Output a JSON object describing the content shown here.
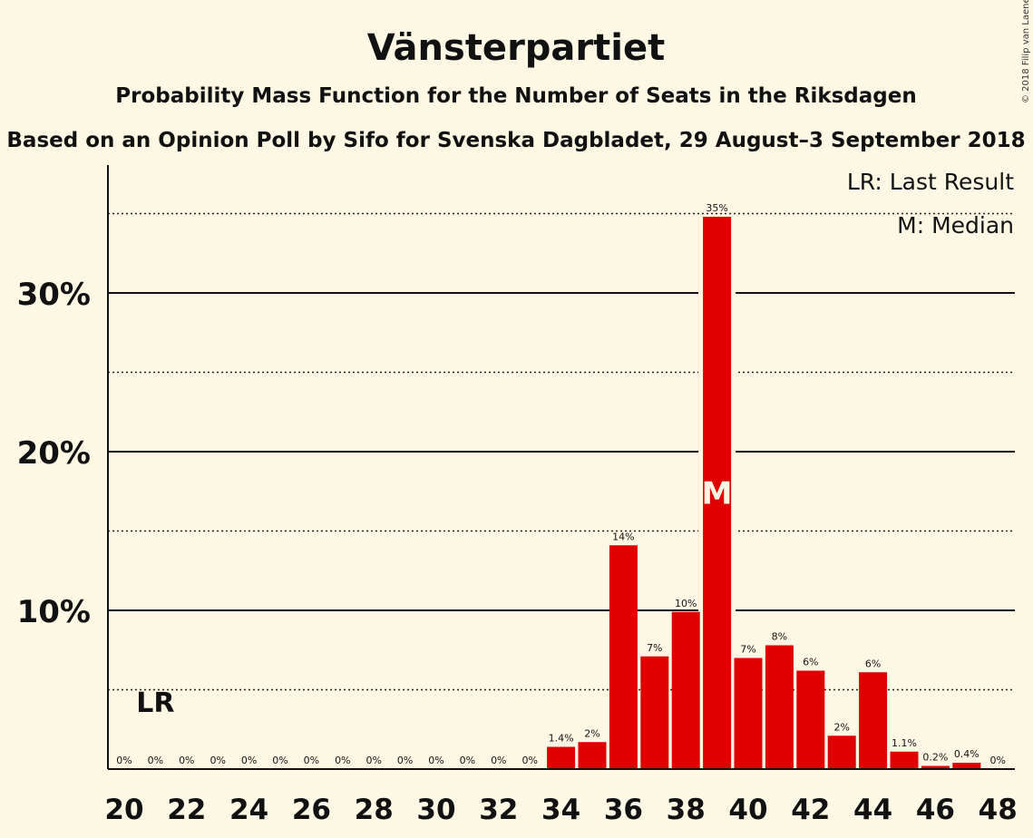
{
  "chart_data": {
    "type": "bar",
    "title": "Vänsterpartiet",
    "subtitle": "Probability Mass Function for the Number of Seats in the Riksdagen",
    "subtitle2": "Based on an Opinion Poll by Sifo for Svenska Dagbladet, 29 August–3 September 2018",
    "copyright": "© 2018 Filip van Laenen",
    "categories": [
      20,
      21,
      22,
      23,
      24,
      25,
      26,
      27,
      28,
      29,
      30,
      31,
      32,
      33,
      34,
      35,
      36,
      37,
      38,
      39,
      40,
      41,
      42,
      43,
      44,
      45,
      46,
      47,
      48
    ],
    "values": [
      0,
      0,
      0,
      0,
      0,
      0,
      0,
      0,
      0,
      0,
      0,
      0,
      0,
      0,
      1.4,
      1.7,
      14.1,
      7.1,
      9.9,
      34.8,
      7.0,
      7.8,
      6.2,
      2.1,
      6.1,
      1.1,
      0.2,
      0.4,
      0
    ],
    "data_labels": [
      "0%",
      "0%",
      "0%",
      "0%",
      "0%",
      "0%",
      "0%",
      "0%",
      "0%",
      "0%",
      "0%",
      "0%",
      "0%",
      "0%",
      "1.4%",
      "2%",
      "14%",
      "7%",
      "10%",
      "35%",
      "7%",
      "8%",
      "6%",
      "2%",
      "6%",
      "1.1%",
      "0.2%",
      "0.4%",
      "0%"
    ],
    "xticks": [
      "20",
      "22",
      "24",
      "26",
      "28",
      "30",
      "32",
      "34",
      "36",
      "38",
      "40",
      "42",
      "44",
      "46",
      "48"
    ],
    "yticks": [
      {
        "value": 10,
        "label": "10%"
      },
      {
        "value": 20,
        "label": "20%"
      },
      {
        "value": 30,
        "label": "30%"
      }
    ],
    "dotted_gridlines": [
      5,
      15,
      25,
      35
    ],
    "ylim": [
      0,
      38
    ],
    "bar_color": "#e00000",
    "last_result": {
      "seat": 21,
      "label": "LR"
    },
    "median": {
      "seat": 39,
      "label": "M"
    },
    "legend": [
      "LR: Last Result",
      "M: Median"
    ],
    "legend_position": "top-right"
  }
}
